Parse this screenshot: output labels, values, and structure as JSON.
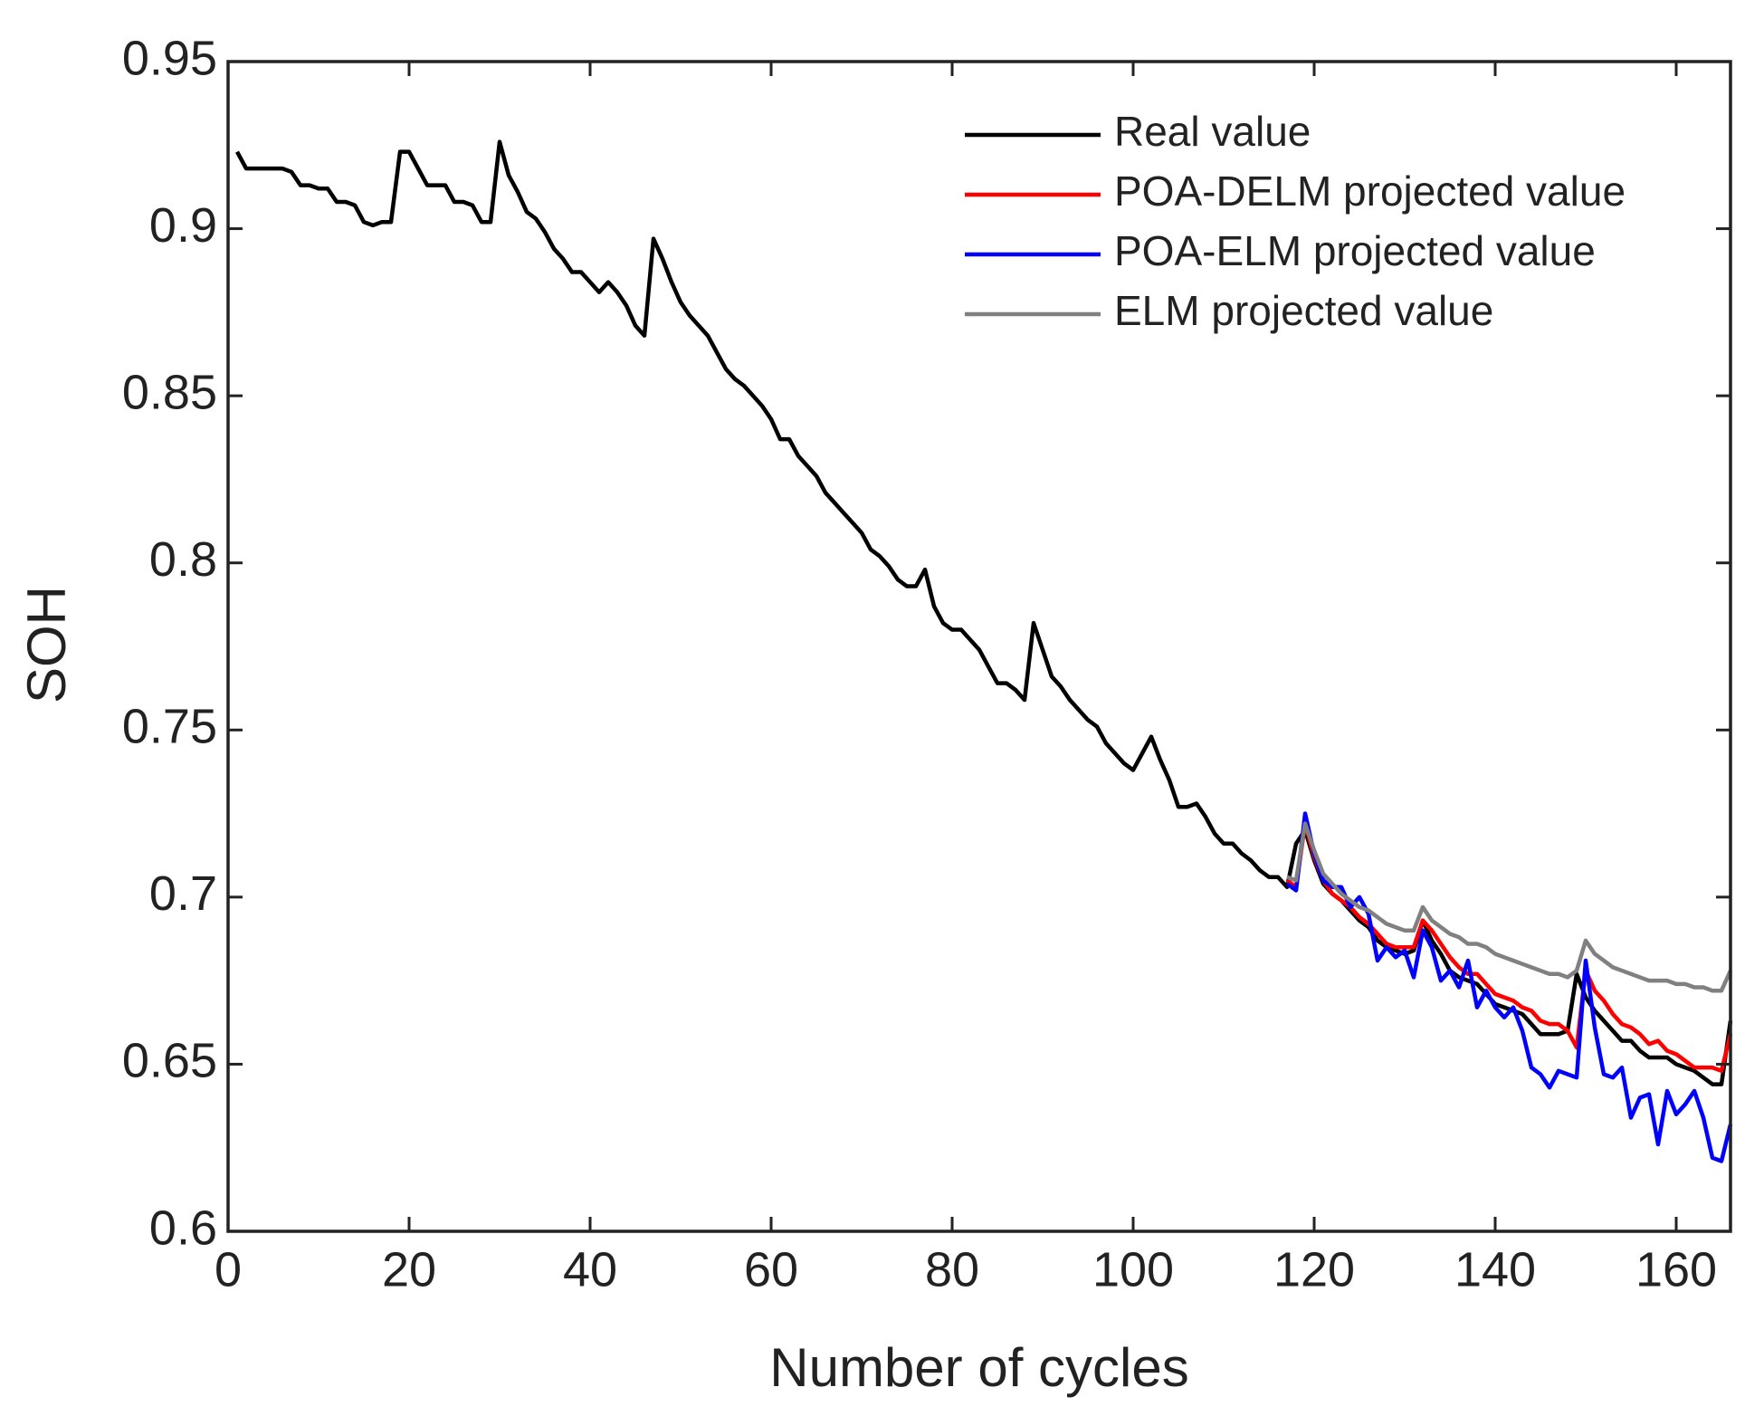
{
  "chart_data": {
    "type": "line",
    "xlabel": "Number of cycles",
    "ylabel": "SOH",
    "xlim": [
      0,
      166
    ],
    "ylim": [
      0.6,
      0.95
    ],
    "xticks": [
      0,
      20,
      40,
      60,
      80,
      100,
      120,
      140,
      160
    ],
    "yticks": [
      0.6,
      0.65,
      0.7,
      0.75,
      0.8,
      0.85,
      0.9,
      0.95
    ],
    "legend": "upper right",
    "x": [
      1,
      2,
      3,
      4,
      5,
      6,
      7,
      8,
      9,
      10,
      11,
      12,
      13,
      14,
      15,
      16,
      17,
      18,
      19,
      20,
      21,
      22,
      23,
      24,
      25,
      26,
      27,
      28,
      29,
      30,
      31,
      32,
      33,
      34,
      35,
      36,
      37,
      38,
      39,
      40,
      41,
      42,
      43,
      44,
      45,
      46,
      47,
      48,
      49,
      50,
      51,
      52,
      53,
      54,
      55,
      56,
      57,
      58,
      59,
      60,
      61,
      62,
      63,
      64,
      65,
      66,
      67,
      68,
      69,
      70,
      71,
      72,
      73,
      74,
      75,
      76,
      77,
      78,
      79,
      80,
      81,
      82,
      83,
      84,
      85,
      86,
      87,
      88,
      89,
      90,
      91,
      92,
      93,
      94,
      95,
      96,
      97,
      98,
      99,
      100,
      101,
      102,
      103,
      104,
      105,
      106,
      107,
      108,
      109,
      110,
      111,
      112,
      113,
      114,
      115,
      116,
      117,
      118,
      119,
      120,
      121,
      122,
      123,
      124,
      125,
      126,
      127,
      128,
      129,
      130,
      131,
      132,
      133,
      134,
      135,
      136,
      137,
      138,
      139,
      140,
      141,
      142,
      143,
      144,
      145,
      146,
      147,
      148,
      149,
      150,
      151,
      152,
      153,
      154,
      155,
      156,
      157,
      158,
      159,
      160,
      161,
      162,
      163,
      164,
      165,
      166
    ],
    "series": [
      {
        "name": "Real value",
        "color": "#000000",
        "values": [
          0.923,
          0.918,
          0.918,
          0.918,
          0.918,
          0.918,
          0.917,
          0.913,
          0.913,
          0.912,
          0.912,
          0.908,
          0.908,
          0.907,
          0.902,
          0.901,
          0.902,
          0.902,
          0.923,
          0.923,
          0.918,
          0.913,
          0.913,
          0.913,
          0.908,
          0.908,
          0.907,
          0.902,
          0.902,
          0.926,
          0.916,
          0.911,
          0.905,
          0.903,
          0.899,
          0.894,
          0.891,
          0.887,
          0.887,
          0.884,
          0.881,
          0.884,
          0.881,
          0.877,
          0.871,
          0.868,
          0.897,
          0.891,
          0.884,
          0.878,
          0.874,
          0.871,
          0.868,
          0.863,
          0.858,
          0.855,
          0.853,
          0.85,
          0.847,
          0.843,
          0.837,
          0.837,
          0.832,
          0.829,
          0.826,
          0.821,
          0.818,
          0.815,
          0.812,
          0.809,
          0.804,
          0.802,
          0.799,
          0.795,
          0.793,
          0.793,
          0.798,
          0.787,
          0.782,
          0.78,
          0.78,
          0.777,
          0.774,
          0.769,
          0.764,
          0.764,
          0.762,
          0.759,
          0.782,
          0.774,
          0.766,
          0.763,
          0.759,
          0.756,
          0.753,
          0.751,
          0.746,
          0.743,
          0.74,
          0.738,
          0.743,
          0.748,
          0.741,
          0.735,
          0.727,
          0.727,
          0.728,
          0.724,
          0.719,
          0.716,
          0.716,
          0.713,
          0.711,
          0.708,
          0.706,
          0.706,
          0.703,
          0.716,
          0.72,
          0.711,
          0.704,
          0.701,
          0.699,
          0.696,
          0.693,
          0.691,
          0.687,
          0.685,
          0.684,
          0.683,
          0.684,
          0.693,
          0.687,
          0.683,
          0.678,
          0.676,
          0.675,
          0.674,
          0.671,
          0.668,
          0.667,
          0.666,
          0.665,
          0.662,
          0.659,
          0.659,
          0.659,
          0.66,
          0.677,
          0.67,
          0.666,
          0.663,
          0.66,
          0.657,
          0.657,
          0.654,
          0.652,
          0.652,
          0.652,
          0.65,
          0.649,
          0.648,
          0.646,
          0.644,
          0.644,
          0.663
        ]
      },
      {
        "name": "POA-DELM projected value",
        "color": "#ff0000",
        "values": [
          null,
          null,
          null,
          null,
          null,
          null,
          null,
          null,
          null,
          null,
          null,
          null,
          null,
          null,
          null,
          null,
          null,
          null,
          null,
          null,
          null,
          null,
          null,
          null,
          null,
          null,
          null,
          null,
          null,
          null,
          null,
          null,
          null,
          null,
          null,
          null,
          null,
          null,
          null,
          null,
          null,
          null,
          null,
          null,
          null,
          null,
          null,
          null,
          null,
          null,
          null,
          null,
          null,
          null,
          null,
          null,
          null,
          null,
          null,
          null,
          null,
          null,
          null,
          null,
          null,
          null,
          null,
          null,
          null,
          null,
          null,
          null,
          null,
          null,
          null,
          null,
          null,
          null,
          null,
          null,
          null,
          null,
          null,
          null,
          null,
          null,
          null,
          null,
          null,
          null,
          null,
          null,
          null,
          null,
          null,
          null,
          null,
          null,
          null,
          null,
          null,
          null,
          null,
          null,
          null,
          null,
          null,
          null,
          null,
          null,
          null,
          null,
          null,
          null,
          null,
          null,
          0.705,
          0.703,
          0.722,
          0.712,
          0.705,
          0.701,
          0.699,
          0.697,
          0.694,
          0.692,
          0.689,
          0.686,
          0.685,
          0.685,
          0.685,
          0.693,
          0.69,
          0.686,
          0.682,
          0.679,
          0.677,
          0.677,
          0.674,
          0.671,
          0.67,
          0.669,
          0.667,
          0.666,
          0.663,
          0.662,
          0.662,
          0.66,
          0.655,
          0.678,
          0.672,
          0.669,
          0.665,
          0.662,
          0.661,
          0.659,
          0.656,
          0.657,
          0.654,
          0.653,
          0.651,
          0.649,
          0.649,
          0.649,
          0.648,
          0.659
        ]
      },
      {
        "name": "POA-ELM projected value",
        "color": "#0000ff",
        "values": [
          null,
          null,
          null,
          null,
          null,
          null,
          null,
          null,
          null,
          null,
          null,
          null,
          null,
          null,
          null,
          null,
          null,
          null,
          null,
          null,
          null,
          null,
          null,
          null,
          null,
          null,
          null,
          null,
          null,
          null,
          null,
          null,
          null,
          null,
          null,
          null,
          null,
          null,
          null,
          null,
          null,
          null,
          null,
          null,
          null,
          null,
          null,
          null,
          null,
          null,
          null,
          null,
          null,
          null,
          null,
          null,
          null,
          null,
          null,
          null,
          null,
          null,
          null,
          null,
          null,
          null,
          null,
          null,
          null,
          null,
          null,
          null,
          null,
          null,
          null,
          null,
          null,
          null,
          null,
          null,
          null,
          null,
          null,
          null,
          null,
          null,
          null,
          null,
          null,
          null,
          null,
          null,
          null,
          null,
          null,
          null,
          null,
          null,
          null,
          null,
          null,
          null,
          null,
          null,
          null,
          null,
          null,
          null,
          null,
          null,
          null,
          null,
          null,
          null,
          null,
          null,
          0.704,
          0.702,
          0.725,
          0.713,
          0.705,
          0.703,
          0.703,
          0.697,
          0.7,
          0.695,
          0.681,
          0.685,
          0.682,
          0.684,
          0.676,
          0.69,
          0.685,
          0.675,
          0.678,
          0.673,
          0.681,
          0.667,
          0.672,
          0.667,
          0.664,
          0.667,
          0.66,
          0.649,
          0.647,
          0.643,
          0.648,
          0.647,
          0.646,
          0.681,
          0.661,
          0.647,
          0.646,
          0.649,
          0.634,
          0.64,
          0.641,
          0.626,
          0.642,
          0.635,
          0.638,
          0.642,
          0.634,
          0.622,
          0.621,
          0.632
        ]
      },
      {
        "name": "ELM projected value",
        "color": "#808080",
        "values": [
          null,
          null,
          null,
          null,
          null,
          null,
          null,
          null,
          null,
          null,
          null,
          null,
          null,
          null,
          null,
          null,
          null,
          null,
          null,
          null,
          null,
          null,
          null,
          null,
          null,
          null,
          null,
          null,
          null,
          null,
          null,
          null,
          null,
          null,
          null,
          null,
          null,
          null,
          null,
          null,
          null,
          null,
          null,
          null,
          null,
          null,
          null,
          null,
          null,
          null,
          null,
          null,
          null,
          null,
          null,
          null,
          null,
          null,
          null,
          null,
          null,
          null,
          null,
          null,
          null,
          null,
          null,
          null,
          null,
          null,
          null,
          null,
          null,
          null,
          null,
          null,
          null,
          null,
          null,
          null,
          null,
          null,
          null,
          null,
          null,
          null,
          null,
          null,
          null,
          null,
          null,
          null,
          null,
          null,
          null,
          null,
          null,
          null,
          null,
          null,
          null,
          null,
          null,
          null,
          null,
          null,
          null,
          null,
          null,
          null,
          null,
          null,
          null,
          null,
          null,
          null,
          0.706,
          0.705,
          0.722,
          0.714,
          0.707,
          0.704,
          0.701,
          0.699,
          0.697,
          0.696,
          0.694,
          0.692,
          0.691,
          0.69,
          0.69,
          0.697,
          0.693,
          0.691,
          0.689,
          0.688,
          0.686,
          0.686,
          0.685,
          0.683,
          0.682,
          0.681,
          0.68,
          0.679,
          0.678,
          0.677,
          0.677,
          0.676,
          0.678,
          0.687,
          0.683,
          0.681,
          0.679,
          0.678,
          0.677,
          0.676,
          0.675,
          0.675,
          0.675,
          0.674,
          0.674,
          0.673,
          0.673,
          0.672,
          0.672,
          0.678
        ]
      }
    ]
  }
}
